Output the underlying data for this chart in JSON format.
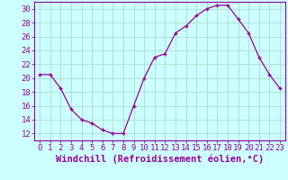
{
  "x": [
    0,
    1,
    2,
    3,
    4,
    5,
    6,
    7,
    8,
    9,
    10,
    11,
    12,
    13,
    14,
    15,
    16,
    17,
    18,
    19,
    20,
    21,
    22,
    23
  ],
  "y": [
    20.5,
    20.5,
    18.5,
    15.5,
    14.0,
    13.5,
    12.5,
    12.0,
    12.0,
    16.0,
    20.0,
    23.0,
    23.5,
    26.5,
    27.5,
    29.0,
    30.0,
    30.5,
    30.5,
    28.5,
    26.5,
    23.0,
    20.5,
    18.5
  ],
  "line_color": "#990099",
  "marker": "+",
  "bg_color": "#ccffff",
  "grid_color": "#aaddcc",
  "xlabel": "Windchill (Refroidissement éolien,°C)",
  "ylabel_ticks": [
    12,
    14,
    16,
    18,
    20,
    22,
    24,
    26,
    28,
    30
  ],
  "ylim": [
    11,
    31
  ],
  "xlim": [
    -0.5,
    23.5
  ],
  "xticks": [
    0,
    1,
    2,
    3,
    4,
    5,
    6,
    7,
    8,
    9,
    10,
    11,
    12,
    13,
    14,
    15,
    16,
    17,
    18,
    19,
    20,
    21,
    22,
    23
  ],
  "xlabel_fontsize": 7.5,
  "tick_fontsize": 6.5
}
